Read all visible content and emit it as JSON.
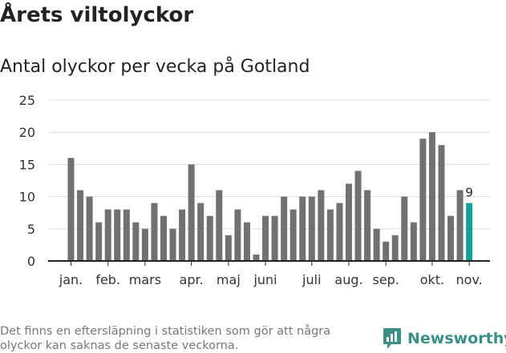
{
  "header": {
    "title": "Årets viltolyckor",
    "subtitle": "Antal olyckor per vecka på Gotland"
  },
  "footer": {
    "note": "Det finns en eftersläpning i statistiken som gör att några olyckor kan saknas de senaste veckorna.",
    "brand": "Newsworthy",
    "logo_icon": "newsworthy-logo-icon"
  },
  "colors": {
    "bar": "#717073",
    "highlight": "#13a195",
    "grid": "#dddddd",
    "axis": "#222222",
    "brand": "#3a8f86"
  },
  "chart_data": {
    "type": "bar",
    "title": "Antal olyckor per vecka på Gotland",
    "xlabel": "",
    "ylabel": "",
    "ylim": [
      0,
      25
    ],
    "yticks": [
      0,
      5,
      10,
      15,
      20,
      25
    ],
    "grid": true,
    "values": [
      16,
      11,
      10,
      6,
      8,
      8,
      8,
      6,
      5,
      9,
      7,
      5,
      8,
      15,
      9,
      7,
      11,
      4,
      8,
      6,
      1,
      7,
      7,
      10,
      8,
      10,
      10,
      11,
      8,
      9,
      12,
      14,
      11,
      5,
      3,
      4,
      10,
      6,
      19,
      20,
      18,
      7,
      11,
      9
    ],
    "highlight_index": 43,
    "highlight_label": "9",
    "month_labels": [
      {
        "label": "jan.",
        "index": 0
      },
      {
        "label": "feb.",
        "index": 4
      },
      {
        "label": "mars",
        "index": 8
      },
      {
        "label": "apr.",
        "index": 13
      },
      {
        "label": "maj",
        "index": 17
      },
      {
        "label": "juni",
        "index": 21
      },
      {
        "label": "juli",
        "index": 26
      },
      {
        "label": "aug.",
        "index": 30
      },
      {
        "label": "sep.",
        "index": 34
      },
      {
        "label": "okt.",
        "index": 39
      },
      {
        "label": "nov.",
        "index": 43
      }
    ]
  }
}
